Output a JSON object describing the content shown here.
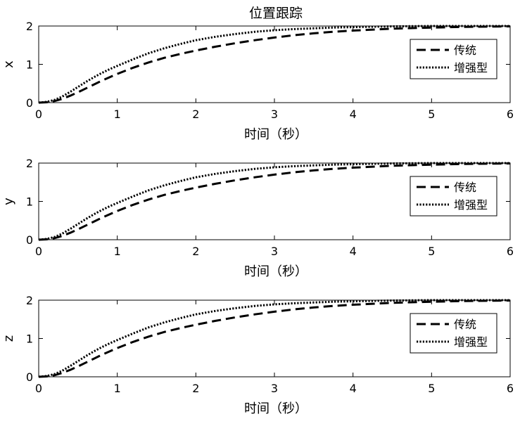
{
  "chart_data": [
    {
      "type": "line",
      "title": "位置跟踪",
      "xlabel": "时间（秒）",
      "ylabel": "x",
      "xlim": [
        0,
        6
      ],
      "ylim": [
        0,
        2
      ],
      "xticks": [
        "0",
        "1",
        "2",
        "3",
        "4",
        "5",
        "6"
      ],
      "yticks": [
        "0",
        "1",
        "2"
      ],
      "legend_position": "right",
      "x": [
        0,
        0.1,
        0.2,
        0.3,
        0.4,
        0.5,
        0.6,
        0.7,
        0.8,
        0.9,
        1.0,
        1.2,
        1.4,
        1.6,
        1.8,
        2.0,
        2.25,
        2.5,
        2.75,
        3.0,
        3.25,
        3.5,
        3.75,
        4.0,
        4.5,
        5.0,
        5.5,
        6.0
      ],
      "series": [
        {
          "name": "传统",
          "style": "dashed",
          "values": [
            0,
            0.01,
            0.04,
            0.1,
            0.18,
            0.27,
            0.37,
            0.47,
            0.57,
            0.66,
            0.75,
            0.91,
            1.05,
            1.17,
            1.27,
            1.36,
            1.46,
            1.55,
            1.63,
            1.7,
            1.76,
            1.81,
            1.85,
            1.88,
            1.93,
            1.96,
            1.98,
            1.99
          ]
        },
        {
          "name": "增强型",
          "style": "dotted",
          "values": [
            0,
            0.02,
            0.07,
            0.16,
            0.28,
            0.41,
            0.54,
            0.66,
            0.77,
            0.87,
            0.96,
            1.13,
            1.29,
            1.42,
            1.53,
            1.63,
            1.72,
            1.79,
            1.85,
            1.89,
            1.92,
            1.94,
            1.96,
            1.97,
            1.99,
            2.0,
            2.0,
            2.0
          ]
        }
      ]
    },
    {
      "type": "line",
      "title": "",
      "xlabel": "时间（秒）",
      "ylabel": "y",
      "xlim": [
        0,
        6
      ],
      "ylim": [
        0,
        2
      ],
      "xticks": [
        "0",
        "1",
        "2",
        "3",
        "4",
        "5",
        "6"
      ],
      "yticks": [
        "0",
        "1",
        "2"
      ],
      "legend_position": "right",
      "x": [
        0,
        0.1,
        0.2,
        0.3,
        0.4,
        0.5,
        0.6,
        0.7,
        0.8,
        0.9,
        1.0,
        1.2,
        1.4,
        1.6,
        1.8,
        2.0,
        2.25,
        2.5,
        2.75,
        3.0,
        3.25,
        3.5,
        3.75,
        4.0,
        4.5,
        5.0,
        5.5,
        6.0
      ],
      "series": [
        {
          "name": "传统",
          "style": "dashed",
          "values": [
            0,
            0.01,
            0.04,
            0.1,
            0.18,
            0.27,
            0.37,
            0.47,
            0.57,
            0.66,
            0.75,
            0.91,
            1.05,
            1.17,
            1.27,
            1.36,
            1.46,
            1.55,
            1.63,
            1.7,
            1.76,
            1.81,
            1.85,
            1.88,
            1.93,
            1.96,
            1.98,
            1.99
          ]
        },
        {
          "name": "增强型",
          "style": "dotted",
          "values": [
            0,
            0.02,
            0.07,
            0.16,
            0.28,
            0.41,
            0.54,
            0.66,
            0.77,
            0.87,
            0.96,
            1.13,
            1.29,
            1.42,
            1.53,
            1.63,
            1.72,
            1.79,
            1.85,
            1.89,
            1.92,
            1.94,
            1.96,
            1.97,
            1.99,
            2.0,
            2.0,
            2.0
          ]
        }
      ]
    },
    {
      "type": "line",
      "title": "",
      "xlabel": "时间（秒）",
      "ylabel": "z",
      "xlim": [
        0,
        6
      ],
      "ylim": [
        0,
        2
      ],
      "xticks": [
        "0",
        "1",
        "2",
        "3",
        "4",
        "5",
        "6"
      ],
      "yticks": [
        "0",
        "1",
        "2"
      ],
      "legend_position": "right",
      "x": [
        0,
        0.1,
        0.2,
        0.3,
        0.4,
        0.5,
        0.6,
        0.7,
        0.8,
        0.9,
        1.0,
        1.2,
        1.4,
        1.6,
        1.8,
        2.0,
        2.25,
        2.5,
        2.75,
        3.0,
        3.25,
        3.5,
        3.75,
        4.0,
        4.5,
        5.0,
        5.5,
        6.0
      ],
      "series": [
        {
          "name": "传统",
          "style": "dashed",
          "values": [
            0,
            0.01,
            0.04,
            0.1,
            0.18,
            0.27,
            0.37,
            0.47,
            0.57,
            0.66,
            0.75,
            0.91,
            1.05,
            1.17,
            1.27,
            1.36,
            1.46,
            1.55,
            1.63,
            1.7,
            1.76,
            1.81,
            1.85,
            1.88,
            1.93,
            1.96,
            1.98,
            1.99
          ]
        },
        {
          "name": "增强型",
          "style": "dotted",
          "values": [
            0,
            0.02,
            0.07,
            0.16,
            0.28,
            0.41,
            0.54,
            0.66,
            0.77,
            0.87,
            0.96,
            1.13,
            1.29,
            1.42,
            1.53,
            1.63,
            1.72,
            1.79,
            1.85,
            1.89,
            1.92,
            1.94,
            1.96,
            1.97,
            1.99,
            2.0,
            2.0,
            2.0
          ]
        }
      ]
    }
  ]
}
